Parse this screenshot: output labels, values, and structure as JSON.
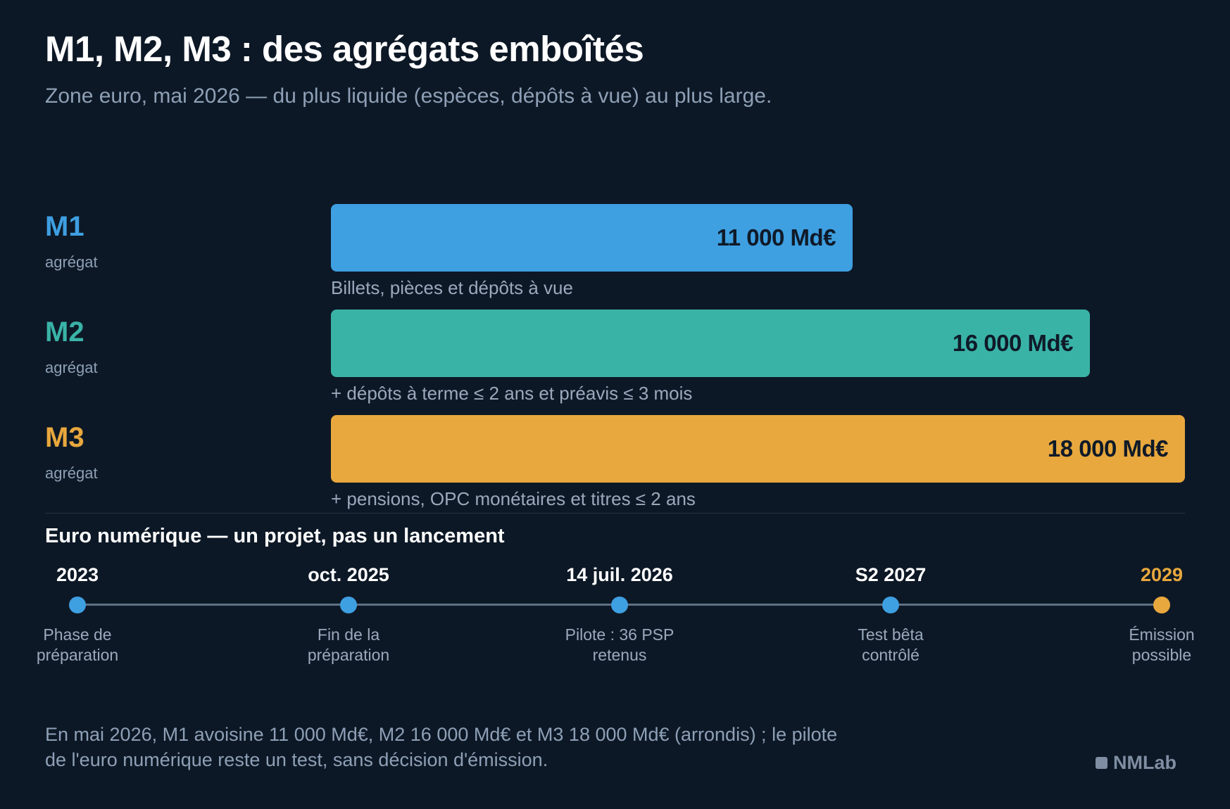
{
  "title": "M1, M2, M3 : des agrégats emboîtés",
  "subtitle": "Zone euro, mai 2026 — du plus liquide (espèces, dépôts à vue) au plus large.",
  "chart_data": {
    "type": "bar",
    "orientation": "horizontal",
    "title": "M1, M2, M3 : des agrégats emboîtés",
    "subtitle": "Zone euro, mai 2026 — du plus liquide (espèces, dépôts à vue) au plus large.",
    "categories": [
      "M1",
      "M2",
      "M3"
    ],
    "values": [
      11000,
      16000,
      18000
    ],
    "unit": "Md€",
    "xlim": [
      0,
      18000
    ],
    "grid": false,
    "items": [
      {
        "name": "M1",
        "label": "agrégat",
        "value": 11000,
        "value_label": "11 000 Md€",
        "desc": "Billets, pièces et dépôts à vue",
        "color": "#3e9fe1",
        "name_color": "#3e9fe1"
      },
      {
        "name": "M2",
        "label": "agrégat",
        "value": 16000,
        "value_label": "16 000 Md€",
        "desc": "+ dépôts à terme ≤ 2 ans et préavis ≤ 3 mois",
        "color": "#3ab3a7",
        "name_color": "#3ab3a7"
      },
      {
        "name": "M3",
        "label": "agrégat",
        "value": 18000,
        "value_label": "18 000 Md€",
        "desc": "+ pensions, OPC monétaires et titres ≤ 2 ans",
        "color": "#e8a83d",
        "name_color": "#e8a83d"
      }
    ]
  },
  "timeline": {
    "title": "Euro numérique — un projet, pas un lancement",
    "events": [
      {
        "date": "2023",
        "desc_line1": "Phase de",
        "desc_line2": "préparation",
        "color": "#3e9fe1",
        "date_color": "#ffffff"
      },
      {
        "date": "oct. 2025",
        "desc_line1": "Fin de la",
        "desc_line2": "préparation",
        "color": "#3e9fe1",
        "date_color": "#ffffff"
      },
      {
        "date": "14 juil. 2026",
        "desc_line1": "Pilote : 36 PSP",
        "desc_line2": "retenus",
        "color": "#3e9fe1",
        "date_color": "#ffffff"
      },
      {
        "date": "S2 2027",
        "desc_line1": "Test bêta",
        "desc_line2": "contrôlé",
        "color": "#3e9fe1",
        "date_color": "#ffffff"
      },
      {
        "date": "2029",
        "desc_line1": "Émission",
        "desc_line2": "possible",
        "color": "#e8a83d",
        "date_color": "#e8a83d"
      }
    ]
  },
  "footnote": {
    "line1": "En mai 2026, M1 avoisine 11 000 Md€, M2 16 000 Md€ et M3 18 000 Md€ (arrondis) ; le pilote",
    "line2": "de l'euro numérique reste un test, sans décision d'émission."
  },
  "brand": {
    "name": "NMLab",
    "icon": "square-logo-icon"
  }
}
